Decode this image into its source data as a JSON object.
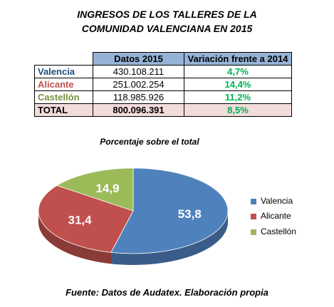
{
  "title_line1": "INGRESOS DE LOS TALLERES DE LA",
  "title_line2": "COMUNIDAD VALENCIANA EN 2015",
  "table": {
    "headers": [
      "Datos 2015",
      "Variación frente a 2014"
    ],
    "rows": [
      {
        "region": "Valencia",
        "datos": "430.108.211",
        "variacion": "4,7%",
        "color": "#1f4e79"
      },
      {
        "region": "Alicante",
        "datos": "251.002.254",
        "variacion": "14,4%",
        "color": "#c0504d"
      },
      {
        "region": "Castellón",
        "datos": "118.985.926",
        "variacion": "11,2%",
        "color": "#76923c"
      },
      {
        "region": "TOTAL",
        "datos": "800.096.391",
        "variacion": "8,5%",
        "color": "#000000"
      }
    ]
  },
  "chart_data": {
    "type": "pie",
    "title": "Porcentaje sobre el total",
    "categories": [
      "Valencia",
      "Alicante",
      "Castellón"
    ],
    "values": [
      53.8,
      31.4,
      14.9
    ],
    "labels": [
      "53,8",
      "31,4",
      "14,9"
    ],
    "colors": [
      "#4f81bd",
      "#c0504d",
      "#9bbb59"
    ],
    "legend_position": "right"
  },
  "legend": [
    {
      "label": "Valencia",
      "color": "#4f81bd"
    },
    {
      "label": "Alicante",
      "color": "#c0504d"
    },
    {
      "label": "Castellón",
      "color": "#9bbb59"
    }
  ],
  "source": "Fuente: Datos de Audatex. Elaboración propia"
}
